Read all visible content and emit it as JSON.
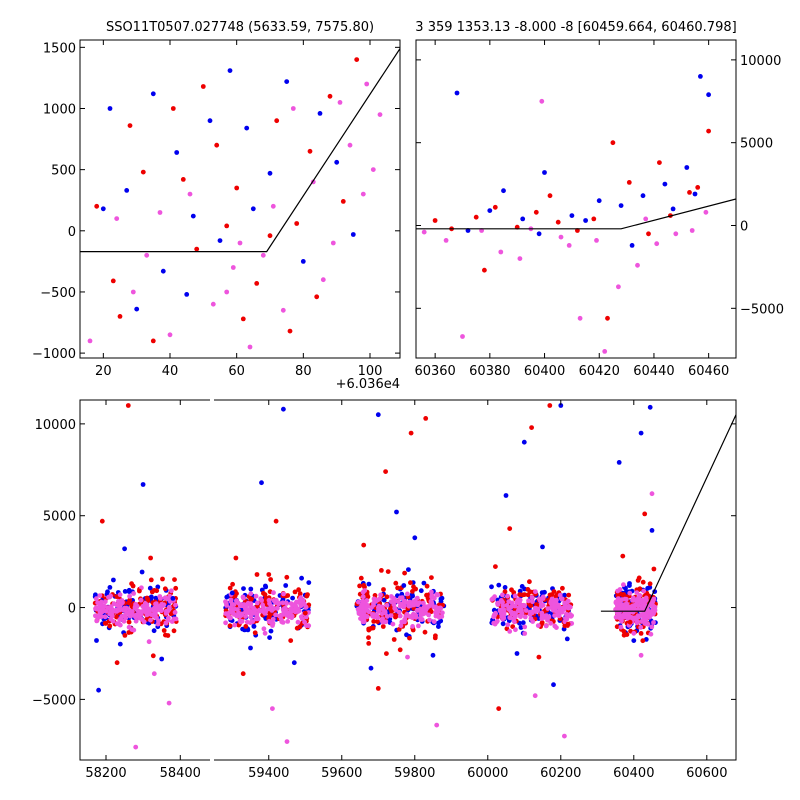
{
  "chart_data": [
    {
      "type": "scatter",
      "title": "SSO11T0507.027748 (5633.59, 7575.80)",
      "x_offset_label": "+6.036e4",
      "xlim": [
        13,
        109
      ],
      "ylim": [
        -1040,
        1560
      ],
      "x_ticks": [
        20,
        40,
        60,
        80,
        100
      ],
      "y_ticks": [
        -1000,
        -500,
        0,
        500,
        1000,
        1500
      ],
      "y_axis_side": "left",
      "model_line": [
        [
          13,
          -170
        ],
        [
          69,
          -170
        ],
        [
          109,
          1490
        ]
      ],
      "series": [
        {
          "color": "#0000ee",
          "points": [
            [
              22,
              1000
            ],
            [
              35,
              1120
            ],
            [
              58,
              1310
            ],
            [
              63,
              840
            ],
            [
              75,
              1220
            ],
            [
              85,
              960
            ],
            [
              42,
              640
            ],
            [
              27,
              330
            ],
            [
              47,
              120
            ],
            [
              55,
              -80
            ],
            [
              70,
              470
            ],
            [
              80,
              -250
            ],
            [
              30,
              -640
            ],
            [
              90,
              560
            ],
            [
              65,
              180
            ],
            [
              38,
              -330
            ],
            [
              52,
              900
            ],
            [
              20,
              180
            ],
            [
              95,
              -30
            ],
            [
              45,
              -520
            ]
          ]
        },
        {
          "color": "#ee0000",
          "points": [
            [
              18,
              200
            ],
            [
              25,
              -700
            ],
            [
              32,
              480
            ],
            [
              41,
              1000
            ],
            [
              48,
              -150
            ],
            [
              54,
              700
            ],
            [
              60,
              350
            ],
            [
              66,
              -430
            ],
            [
              72,
              900
            ],
            [
              78,
              60
            ],
            [
              84,
              -540
            ],
            [
              88,
              1100
            ],
            [
              92,
              240
            ],
            [
              35,
              -900
            ],
            [
              62,
              -720
            ],
            [
              44,
              420
            ],
            [
              50,
              1180
            ],
            [
              28,
              860
            ],
            [
              70,
              -40
            ],
            [
              82,
              650
            ],
            [
              23,
              -410
            ],
            [
              57,
              40
            ],
            [
              76,
              -820
            ],
            [
              96,
              1400
            ]
          ]
        },
        {
          "color": "#ee55dd",
          "points": [
            [
              16,
              -900
            ],
            [
              24,
              100
            ],
            [
              33,
              -200
            ],
            [
              40,
              -850
            ],
            [
              46,
              300
            ],
            [
              53,
              -600
            ],
            [
              59,
              -300
            ],
            [
              64,
              -950
            ],
            [
              71,
              200
            ],
            [
              77,
              1000
            ],
            [
              83,
              400
            ],
            [
              89,
              -100
            ],
            [
              94,
              700
            ],
            [
              99,
              1200
            ],
            [
              103,
              950
            ],
            [
              98,
              300
            ],
            [
              86,
              -400
            ],
            [
              74,
              -650
            ],
            [
              68,
              -200
            ],
            [
              57,
              -500
            ],
            [
              37,
              150
            ],
            [
              29,
              -500
            ],
            [
              61,
              -100
            ],
            [
              91,
              1050
            ],
            [
              101,
              500
            ]
          ]
        }
      ]
    },
    {
      "type": "scatter",
      "title": "3 359 1353.13 -8.000 -8 [60459.664, 60460.798]",
      "xlim": [
        60353,
        60470
      ],
      "ylim": [
        -8000,
        11200
      ],
      "x_ticks": [
        60360,
        60380,
        60400,
        60420,
        60440,
        60460
      ],
      "y_ticks": [
        -5000,
        0,
        5000,
        10000
      ],
      "y_axis_side": "right",
      "model_line": [
        [
          60353,
          -200
        ],
        [
          60428,
          -200
        ],
        [
          60470,
          1600
        ]
      ],
      "series": [
        {
          "color": "#0000ee",
          "points": [
            [
              60368,
              8000
            ],
            [
              60380,
              900
            ],
            [
              60392,
              400
            ],
            [
              60400,
              3200
            ],
            [
              60410,
              600
            ],
            [
              60420,
              1500
            ],
            [
              60428,
              1200
            ],
            [
              60436,
              1800
            ],
            [
              60444,
              2500
            ],
            [
              60452,
              3500
            ],
            [
              60457,
              9000
            ],
            [
              60460,
              7900
            ],
            [
              60372,
              -300
            ],
            [
              60385,
              2100
            ],
            [
              60398,
              -500
            ],
            [
              60415,
              300
            ],
            [
              60432,
              -1200
            ],
            [
              60447,
              1000
            ],
            [
              60455,
              1900
            ]
          ]
        },
        {
          "color": "#ee0000",
          "points": [
            [
              60360,
              300
            ],
            [
              60366,
              -200
            ],
            [
              60375,
              500
            ],
            [
              60382,
              1100
            ],
            [
              60390,
              -100
            ],
            [
              60397,
              800
            ],
            [
              60405,
              200
            ],
            [
              60412,
              -300
            ],
            [
              60418,
              400
            ],
            [
              60425,
              5000
            ],
            [
              60431,
              2600
            ],
            [
              60438,
              -500
            ],
            [
              60446,
              600
            ],
            [
              60453,
              2000
            ],
            [
              60460,
              5700
            ],
            [
              60378,
              -2700
            ],
            [
              60402,
              1800
            ],
            [
              60423,
              -5600
            ],
            [
              60442,
              3800
            ],
            [
              60456,
              2300
            ]
          ]
        },
        {
          "color": "#ee55dd",
          "points": [
            [
              60356,
              -400
            ],
            [
              60364,
              -900
            ],
            [
              60370,
              -6700
            ],
            [
              60377,
              -300
            ],
            [
              60384,
              -1600
            ],
            [
              60391,
              -2000
            ],
            [
              60399,
              7500
            ],
            [
              60406,
              -700
            ],
            [
              60413,
              -5600
            ],
            [
              60419,
              -900
            ],
            [
              60422,
              -7600
            ],
            [
              60427,
              -3700
            ],
            [
              60434,
              -2400
            ],
            [
              60441,
              -1100
            ],
            [
              60448,
              -500
            ],
            [
              60454,
              -300
            ],
            [
              60459,
              800
            ],
            [
              60395,
              -200
            ],
            [
              60409,
              -1200
            ],
            [
              60437,
              400
            ]
          ]
        }
      ]
    },
    {
      "type": "scatter",
      "x_ticks": [
        58200,
        58400,
        59400,
        59600,
        59800,
        60000,
        60200,
        60400,
        60600
      ],
      "y_ticks": [
        -5000,
        0,
        5000,
        10000
      ],
      "ylim": [
        -8300,
        11300
      ],
      "segments": [
        {
          "xlim": [
            58130,
            58480
          ]
        },
        {
          "xlim": [
            59250,
            60680
          ]
        }
      ],
      "model_line": [
        [
          60310,
          -200
        ],
        [
          60430,
          -200
        ],
        [
          60680,
          10500
        ]
      ],
      "clusters": [
        {
          "segment": 0,
          "x": [
            58170,
            58390
          ]
        },
        {
          "segment": 1,
          "x": [
            59280,
            59510
          ]
        },
        {
          "segment": 1,
          "x": [
            59640,
            59880
          ]
        },
        {
          "segment": 1,
          "x": [
            60010,
            60230
          ]
        },
        {
          "segment": 1,
          "x": [
            60350,
            60460
          ]
        }
      ],
      "series": [
        {
          "color": "#0000ee",
          "points": [
            [
              58180,
              -4500
            ],
            [
              58250,
              3200
            ],
            [
              58300,
              6700
            ],
            [
              58350,
              -2800
            ],
            [
              58220,
              1500
            ],
            [
              58380,
              500
            ],
            [
              59300,
              800
            ],
            [
              59380,
              6800
            ],
            [
              59440,
              10800
            ],
            [
              59470,
              -3000
            ],
            [
              59350,
              -2200
            ],
            [
              59490,
              1600
            ],
            [
              59700,
              10500
            ],
            [
              59750,
              5200
            ],
            [
              59800,
              3800
            ],
            [
              59850,
              -2600
            ],
            [
              59680,
              -3300
            ],
            [
              59770,
              1200
            ],
            [
              60050,
              6100
            ],
            [
              60100,
              9000
            ],
            [
              60150,
              3300
            ],
            [
              60200,
              11000
            ],
            [
              60080,
              -2500
            ],
            [
              60180,
              -4200
            ],
            [
              60360,
              7900
            ],
            [
              60420,
              9500
            ],
            [
              60445,
              10900
            ],
            [
              60400,
              -1800
            ],
            [
              60450,
              4200
            ]
          ]
        },
        {
          "color": "#ee0000",
          "points": [
            [
              58190,
              4700
            ],
            [
              58260,
              11000
            ],
            [
              58320,
              2700
            ],
            [
              58360,
              -1500
            ],
            [
              58230,
              -3000
            ],
            [
              58290,
              900
            ],
            [
              59310,
              2700
            ],
            [
              59400,
              1800
            ],
            [
              59460,
              -1800
            ],
            [
              59330,
              -3600
            ],
            [
              59420,
              4700
            ],
            [
              59500,
              -300
            ],
            [
              59660,
              3400
            ],
            [
              59720,
              7400
            ],
            [
              59790,
              9500
            ],
            [
              59830,
              10300
            ],
            [
              59760,
              -2300
            ],
            [
              59700,
              -4400
            ],
            [
              60060,
              4300
            ],
            [
              60120,
              9800
            ],
            [
              60170,
              11000
            ],
            [
              60220,
              -900
            ],
            [
              60030,
              -5500
            ],
            [
              60140,
              -2700
            ],
            [
              60370,
              2800
            ],
            [
              60430,
              5100
            ],
            [
              60455,
              2100
            ],
            [
              60390,
              -800
            ]
          ]
        },
        {
          "color": "#ee55dd",
          "points": [
            [
              58200,
              -200
            ],
            [
              58240,
              -600
            ],
            [
              58270,
              -1200
            ],
            [
              58310,
              -400
            ],
            [
              58340,
              -900
            ],
            [
              58370,
              -5200
            ],
            [
              58280,
              -7600
            ],
            [
              58330,
              -3600
            ],
            [
              59290,
              -500
            ],
            [
              59360,
              -300
            ],
            [
              59410,
              -5500
            ],
            [
              59450,
              -7300
            ],
            [
              59480,
              -800
            ],
            [
              59390,
              -1400
            ],
            [
              59670,
              -500
            ],
            [
              59740,
              -900
            ],
            [
              59810,
              -1000
            ],
            [
              59860,
              -6400
            ],
            [
              59780,
              -2700
            ],
            [
              59710,
              -700
            ],
            [
              60020,
              -900
            ],
            [
              60090,
              -500
            ],
            [
              60160,
              -1000
            ],
            [
              60210,
              -7000
            ],
            [
              60130,
              -4800
            ],
            [
              60060,
              -1300
            ],
            [
              60360,
              -400
            ],
            [
              60400,
              -1400
            ],
            [
              60440,
              -200
            ],
            [
              60450,
              6200
            ],
            [
              60420,
              -2600
            ]
          ]
        }
      ]
    }
  ]
}
